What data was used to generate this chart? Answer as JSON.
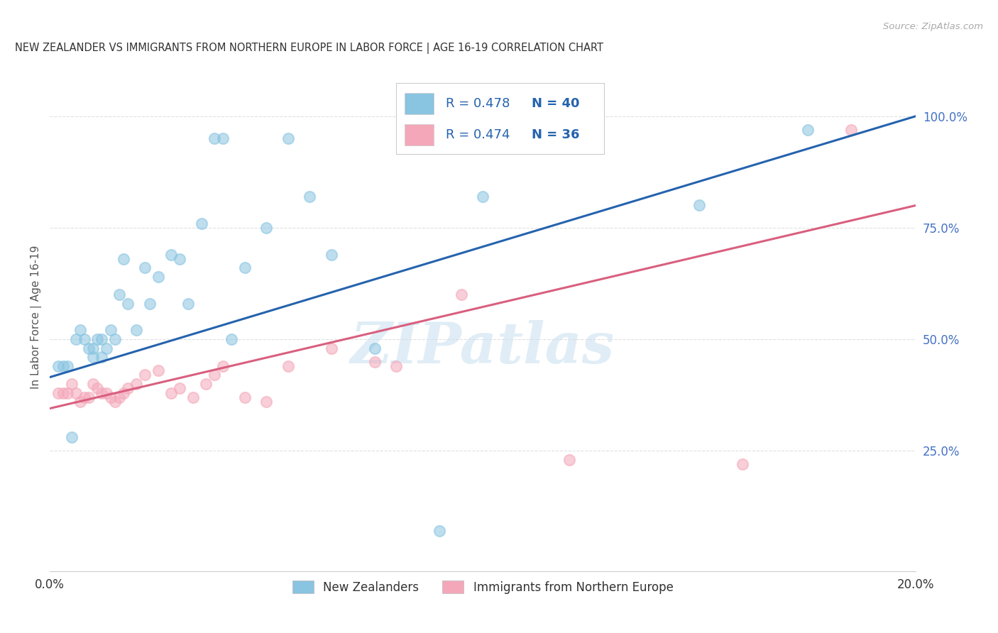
{
  "title": "NEW ZEALANDER VS IMMIGRANTS FROM NORTHERN EUROPE IN LABOR FORCE | AGE 16-19 CORRELATION CHART",
  "source": "Source: ZipAtlas.com",
  "ylabel": "In Labor Force | Age 16-19",
  "xlim": [
    0.0,
    0.2
  ],
  "ylim": [
    -0.02,
    1.12
  ],
  "xticks": [
    0.0,
    0.02,
    0.04,
    0.06,
    0.08,
    0.1,
    0.12,
    0.14,
    0.16,
    0.18,
    0.2
  ],
  "xticklabels": [
    "0.0%",
    "",
    "",
    "",
    "",
    "",
    "",
    "",
    "",
    "",
    "20.0%"
  ],
  "yticks_right": [
    0.25,
    0.5,
    0.75,
    1.0
  ],
  "ytick_right_labels": [
    "25.0%",
    "50.0%",
    "75.0%",
    "100.0%"
  ],
  "blue_color": "#89c4e1",
  "pink_color": "#f4a7b9",
  "blue_line_color": "#2563ae",
  "pink_line_color": "#d95f7f",
  "blue_scatter_x": [
    0.002,
    0.003,
    0.004,
    0.005,
    0.006,
    0.007,
    0.008,
    0.009,
    0.01,
    0.01,
    0.011,
    0.012,
    0.012,
    0.013,
    0.014,
    0.015,
    0.016,
    0.017,
    0.018,
    0.02,
    0.022,
    0.023,
    0.025,
    0.028,
    0.03,
    0.032,
    0.035,
    0.038,
    0.04,
    0.042,
    0.045,
    0.05,
    0.055,
    0.06,
    0.065,
    0.075,
    0.09,
    0.1,
    0.15,
    0.175
  ],
  "blue_scatter_y": [
    0.44,
    0.44,
    0.44,
    0.28,
    0.5,
    0.52,
    0.5,
    0.48,
    0.46,
    0.48,
    0.5,
    0.46,
    0.5,
    0.48,
    0.52,
    0.5,
    0.6,
    0.68,
    0.58,
    0.52,
    0.66,
    0.58,
    0.64,
    0.69,
    0.68,
    0.58,
    0.76,
    0.95,
    0.95,
    0.5,
    0.66,
    0.75,
    0.95,
    0.82,
    0.69,
    0.48,
    0.07,
    0.82,
    0.8,
    0.97
  ],
  "pink_scatter_x": [
    0.002,
    0.003,
    0.004,
    0.005,
    0.006,
    0.007,
    0.008,
    0.009,
    0.01,
    0.011,
    0.012,
    0.013,
    0.014,
    0.015,
    0.016,
    0.017,
    0.018,
    0.02,
    0.022,
    0.025,
    0.028,
    0.03,
    0.033,
    0.036,
    0.038,
    0.04,
    0.045,
    0.05,
    0.055,
    0.065,
    0.075,
    0.08,
    0.095,
    0.12,
    0.16,
    0.185
  ],
  "pink_scatter_y": [
    0.38,
    0.38,
    0.38,
    0.4,
    0.38,
    0.36,
    0.37,
    0.37,
    0.4,
    0.39,
    0.38,
    0.38,
    0.37,
    0.36,
    0.37,
    0.38,
    0.39,
    0.4,
    0.42,
    0.43,
    0.38,
    0.39,
    0.37,
    0.4,
    0.42,
    0.44,
    0.37,
    0.36,
    0.44,
    0.48,
    0.45,
    0.44,
    0.6,
    0.23,
    0.22,
    0.97
  ],
  "blue_line_x0": 0.0,
  "blue_line_y0": 0.415,
  "blue_line_x1": 0.2,
  "blue_line_y1": 1.0,
  "pink_line_x0": 0.0,
  "pink_line_y0": 0.345,
  "pink_line_x1": 0.2,
  "pink_line_y1": 0.8,
  "watermark_text": "ZIPatlas",
  "background_color": "#ffffff",
  "grid_color": "#e0e0e0",
  "legend_r_blue": "R = 0.478",
  "legend_n_blue": "N = 40",
  "legend_r_pink": "R = 0.474",
  "legend_n_pink": "N = 36"
}
